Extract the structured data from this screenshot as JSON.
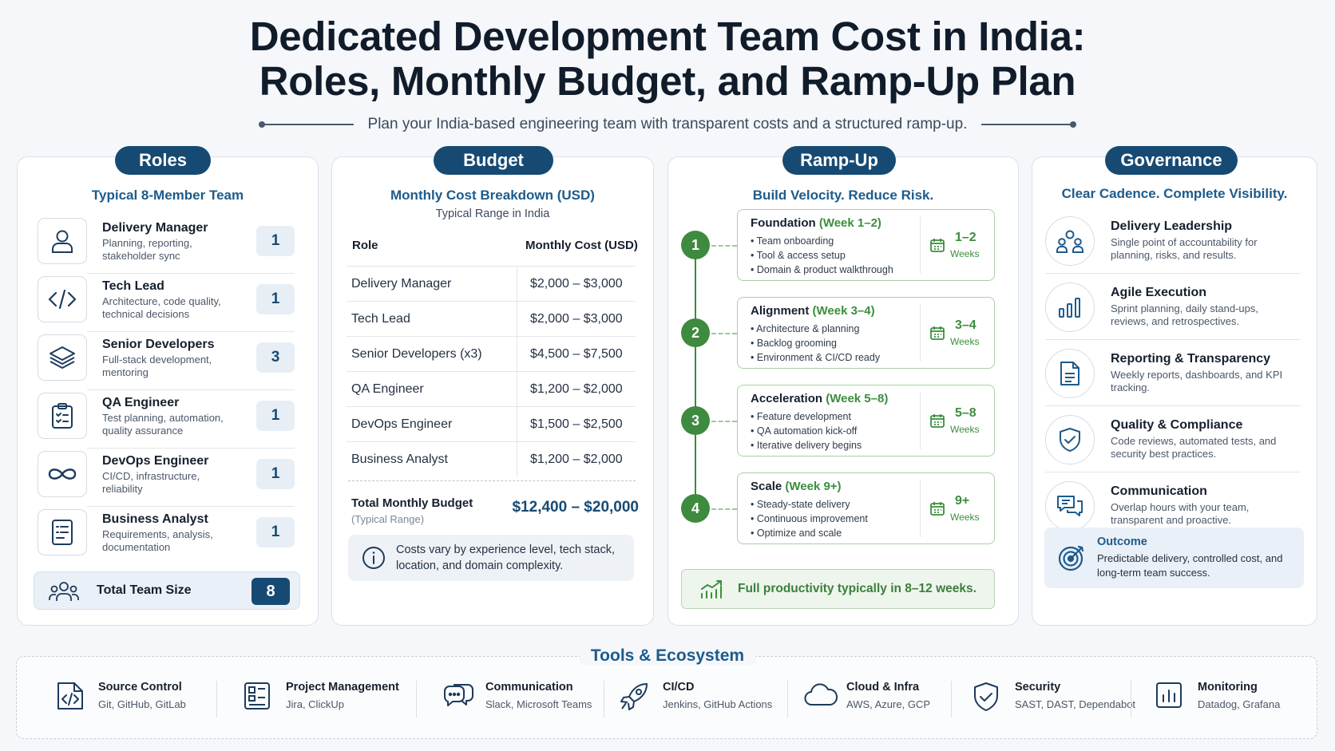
{
  "header": {
    "title_line1": "Dedicated Development Team Cost in India:",
    "title_line2": "Roles, Monthly Budget, and Ramp-Up Plan",
    "subtitle": "Plan your India-based engineering team with transparent costs and a structured ramp-up."
  },
  "roles": {
    "pill": "Roles",
    "subtitle": "Typical 8-Member Team",
    "items": [
      {
        "name": "Delivery Manager",
        "desc": "Planning, reporting, stakeholder sync",
        "count": "1",
        "icon": "user-icon"
      },
      {
        "name": "Tech Lead",
        "desc": "Architecture, code quality, technical decisions",
        "count": "1",
        "icon": "code-icon"
      },
      {
        "name": "Senior Developers",
        "desc": "Full-stack development, mentoring",
        "count": "3",
        "icon": "layers-icon"
      },
      {
        "name": "QA Engineer",
        "desc": "Test planning, automation, quality assurance",
        "count": "1",
        "icon": "clipboard-check-icon"
      },
      {
        "name": "DevOps Engineer",
        "desc": "CI/CD, infrastructure, reliability",
        "count": "1",
        "icon": "infinity-icon"
      },
      {
        "name": "Business Analyst",
        "desc": "Requirements, analysis, documentation",
        "count": "1",
        "icon": "document-icon"
      }
    ],
    "total_label": "Total Team Size",
    "total_count": "8"
  },
  "budget": {
    "pill": "Budget",
    "subtitle": "Monthly Cost Breakdown (USD)",
    "range_note": "Typical Range in India",
    "col_role": "Role",
    "col_cost": "Monthly Cost (USD)",
    "rows": [
      {
        "role": "Delivery Manager",
        "cost": "$2,000 – $3,000"
      },
      {
        "role": "Tech Lead",
        "cost": "$2,000 – $3,000"
      },
      {
        "role": "Senior Developers (x3)",
        "cost": "$4,500 – $7,500"
      },
      {
        "role": "QA Engineer",
        "cost": "$1,200 – $2,000"
      },
      {
        "role": "DevOps Engineer",
        "cost": "$1,500 – $2,500"
      },
      {
        "role": "Business Analyst",
        "cost": "$1,200 – $2,000"
      }
    ],
    "total_label": "Total Monthly Budget",
    "total_note": "(Typical Range)",
    "total_value": "$12,400 – $20,000",
    "info_text": "Costs vary by experience level, tech stack, location, and domain complexity."
  },
  "ramp": {
    "pill": "Ramp-Up",
    "subtitle": "Build Velocity. Reduce Risk.",
    "phases": [
      {
        "num": "1",
        "name": "Foundation",
        "week": "(Week 1–2)",
        "items": [
          "Team onboarding",
          "Tool & access setup",
          "Domain & product walkthrough"
        ],
        "range": "1–2",
        "unit": "Weeks"
      },
      {
        "num": "2",
        "name": "Alignment",
        "week": "(Week 3–4)",
        "items": [
          "Architecture & planning",
          "Backlog grooming",
          "Environment & CI/CD ready"
        ],
        "range": "3–4",
        "unit": "Weeks"
      },
      {
        "num": "3",
        "name": "Acceleration",
        "week": "(Week 5–8)",
        "items": [
          "Feature development",
          "QA automation kick-off",
          "Iterative delivery begins"
        ],
        "range": "5–8",
        "unit": "Weeks"
      },
      {
        "num": "4",
        "name": "Scale",
        "week": "(Week 9+)",
        "items": [
          "Steady-state delivery",
          "Continuous improvement",
          "Optimize and scale"
        ],
        "range": "9+",
        "unit": "Weeks"
      }
    ],
    "footer": "Full productivity typically in 8–12 weeks."
  },
  "governance": {
    "pill": "Governance",
    "subtitle": "Clear Cadence. Complete Visibility.",
    "items": [
      {
        "name": "Delivery Leadership",
        "desc": "Single point of accountability for planning, risks, and results.",
        "icon": "people-icon"
      },
      {
        "name": "Agile Execution",
        "desc": "Sprint planning, daily stand-ups, reviews, and retrospectives.",
        "icon": "bar-chart-icon"
      },
      {
        "name": "Reporting & Transparency",
        "desc": "Weekly reports, dashboards, and KPI tracking.",
        "icon": "report-icon"
      },
      {
        "name": "Quality & Compliance",
        "desc": "Code reviews, automated tests, and security best practices.",
        "icon": "shield-check-icon"
      },
      {
        "name": "Communication",
        "desc": "Overlap hours with your team, transparent and proactive.",
        "icon": "chat-icon"
      }
    ],
    "outcome_title": "Outcome",
    "outcome_desc": "Predictable delivery, controlled cost, and long-term team success."
  },
  "tools": {
    "title": "Tools & Ecosystem",
    "items": [
      {
        "name": "Source Control",
        "desc": "Git, GitHub, GitLab",
        "icon": "code-file-icon"
      },
      {
        "name": "Project Management",
        "desc": "Jira, ClickUp",
        "icon": "board-icon"
      },
      {
        "name": "Communication",
        "desc": "Slack, Microsoft Teams",
        "icon": "chat-bubbles-icon"
      },
      {
        "name": "CI/CD",
        "desc": "Jenkins, GitHub Actions",
        "icon": "rocket-icon"
      },
      {
        "name": "Cloud & Infra",
        "desc": "AWS, Azure, GCP",
        "icon": "cloud-icon"
      },
      {
        "name": "Security",
        "desc": "SAST, DAST, Dependabot",
        "icon": "shield-icon"
      },
      {
        "name": "Monitoring",
        "desc": "Datadog, Grafana",
        "icon": "monitor-chart-icon"
      }
    ]
  },
  "colors": {
    "navy": "#174a73",
    "blue_text": "#1d5b8c",
    "green": "#3e8a3f"
  }
}
